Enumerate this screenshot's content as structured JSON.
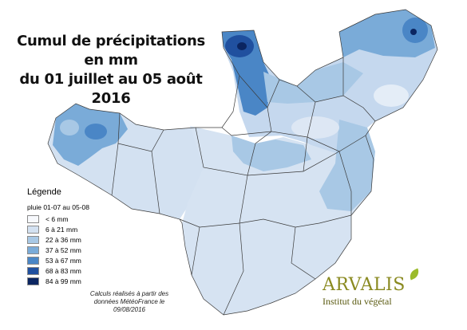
{
  "title": {
    "line1": "Cumul de précipitations en mm",
    "line2": "du 01 juillet au 05 août 2016"
  },
  "legend": {
    "title": "Légende",
    "subtitle": "pluie 01-07 au 05-08",
    "classes": [
      {
        "label": "< 6 mm",
        "color": "#f7f9fd"
      },
      {
        "label": "6 à 21 mm",
        "color": "#d3e1f1"
      },
      {
        "label": "22 à 36 mm",
        "color": "#a8c8e5"
      },
      {
        "label": "37 à 52 mm",
        "color": "#7aabd8"
      },
      {
        "label": "53 à 67 mm",
        "color": "#4a86c6"
      },
      {
        "label": "68 à 83 mm",
        "color": "#20509f"
      },
      {
        "label": "84 à 99 mm",
        "color": "#0b2561"
      }
    ]
  },
  "credit": {
    "line1": "Calculs réalisés à partir des",
    "line2": "données MétéoFrance le",
    "line3": "09/08/2016"
  },
  "logo": {
    "name": "ARVALIS",
    "tagline": "Institut du végétal"
  },
  "colors": {
    "border": "#3a3a3a",
    "brand_text": "#8a8a20",
    "brand_leaf": "#9bbb2b"
  }
}
